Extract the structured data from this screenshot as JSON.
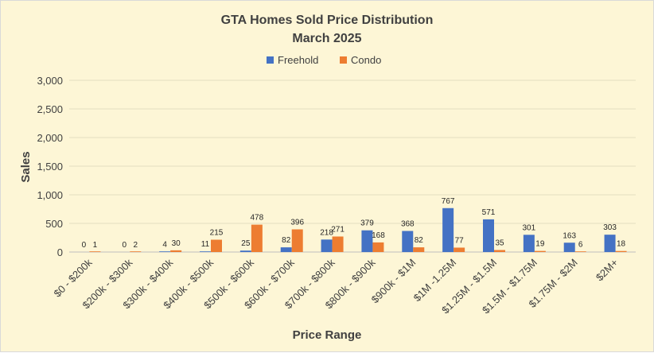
{
  "chart_data": {
    "type": "bar",
    "title": "GTA Homes Sold Price Distribution",
    "subtitle": "March 2025",
    "xlabel": "Price Range",
    "ylabel": "Sales",
    "ylim": [
      0,
      3000
    ],
    "yticks": [
      0,
      500,
      1000,
      1500,
      2000,
      2500,
      3000
    ],
    "ytick_labels": [
      "0",
      "500",
      "1,000",
      "1,500",
      "2,000",
      "2,500",
      "3,000"
    ],
    "grid": true,
    "legend_position": "top",
    "categories": [
      "$0 - $200k",
      "$200k - $300k",
      "$300k - $400k",
      "$400k - $500k",
      "$500k - $600k",
      "$600k - $700k",
      "$700k - $800k",
      "$800k - $900k",
      "$900k - $1M",
      "$1M -1.25M",
      "$1.25M - $1.5M",
      "$1.5M - $1.75M",
      "$1.75M - $2M",
      "$2M+"
    ],
    "series": [
      {
        "name": "Freehold",
        "color": "#4472c4",
        "values": [
          0,
          0,
          4,
          11,
          25,
          82,
          218,
          379,
          368,
          767,
          571,
          301,
          163,
          303
        ]
      },
      {
        "name": "Condo",
        "color": "#ed7d31",
        "values": [
          1,
          2,
          30,
          215,
          478,
          396,
          271,
          168,
          82,
          77,
          35,
          19,
          6,
          18
        ]
      }
    ]
  }
}
